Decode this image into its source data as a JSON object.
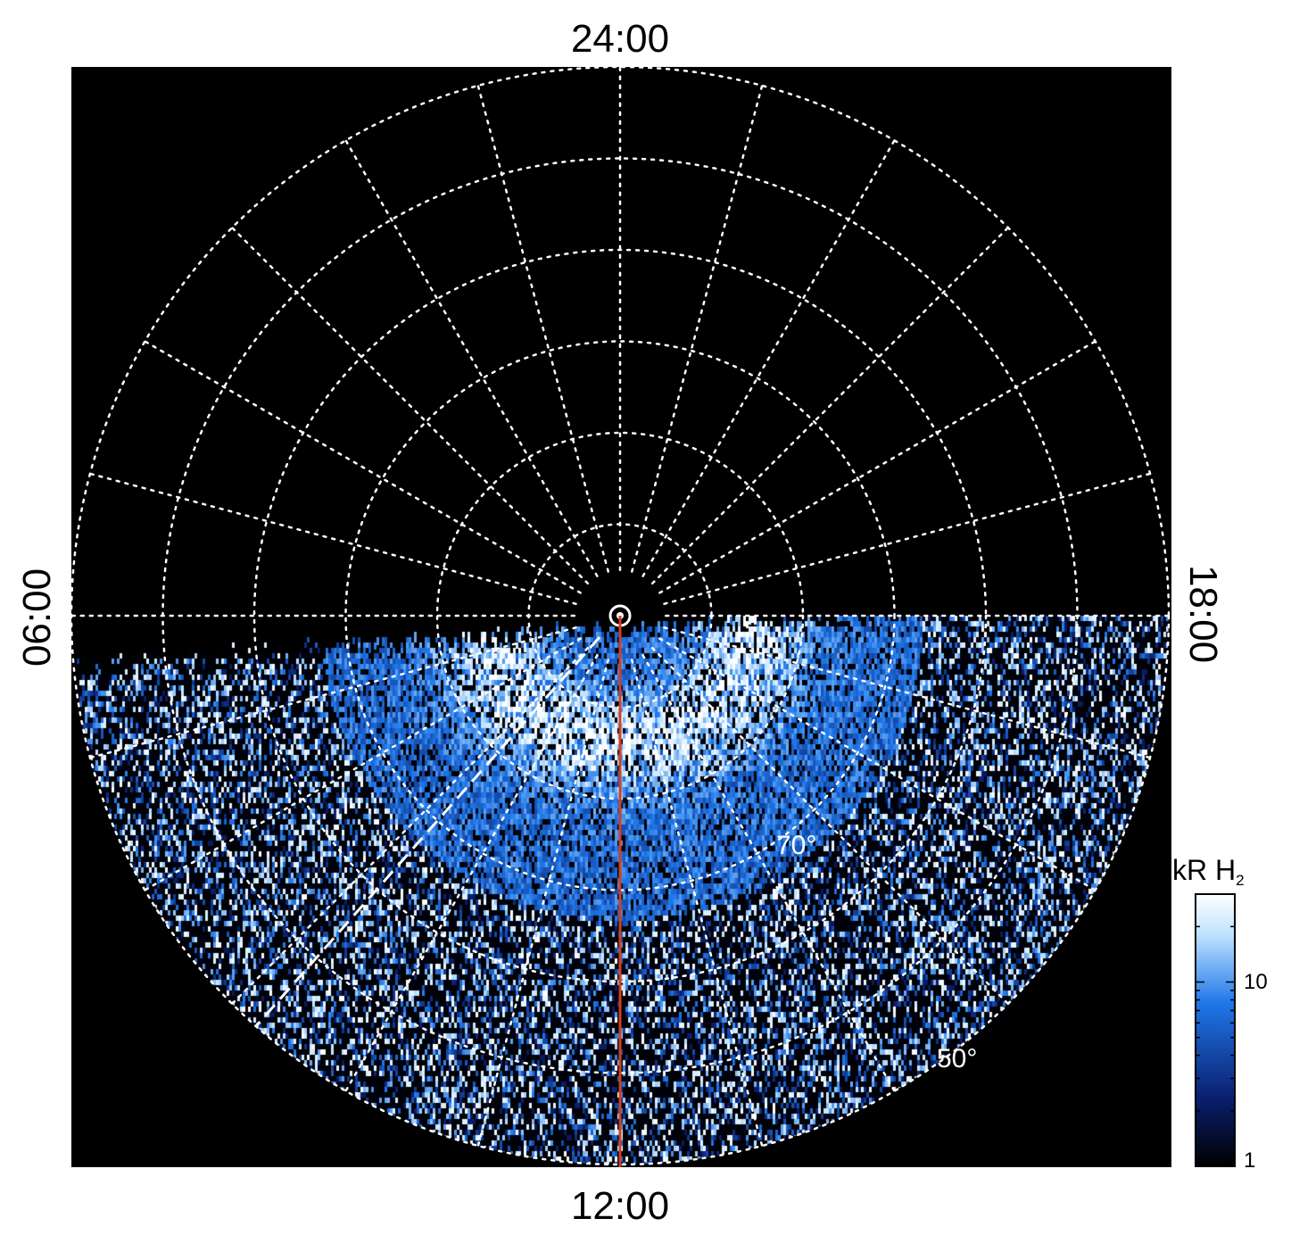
{
  "chart_data": {
    "type": "heatmap",
    "projection": "polar",
    "local_time_labels": {
      "top": "24:00",
      "bottom": "12:00",
      "left": "06:00",
      "right": "18:00"
    },
    "latitude_labels": [
      "70°",
      "50°"
    ],
    "latitude_circles_deg": [
      90,
      80,
      70,
      60,
      50,
      40,
      30
    ],
    "meridian_step_hours": 1,
    "grid": true,
    "grid_style": "dotted white",
    "observed_region": "dayside (below 06:00–18:00 line)",
    "reference_line": {
      "local_time": "12:00",
      "color": "#d2401e"
    },
    "dashed_line_color": "#ffffff",
    "colorbar": {
      "title_main": "kR H",
      "title_sub": "2",
      "scale": "log",
      "range": [
        1,
        30
      ],
      "tick_labels": [
        "1",
        "10"
      ],
      "tick_values": [
        1,
        10
      ],
      "colors": [
        "#000000",
        "#0a1f6e",
        "#1f77e8",
        "#bfe2ff",
        "#ffffff"
      ]
    }
  }
}
